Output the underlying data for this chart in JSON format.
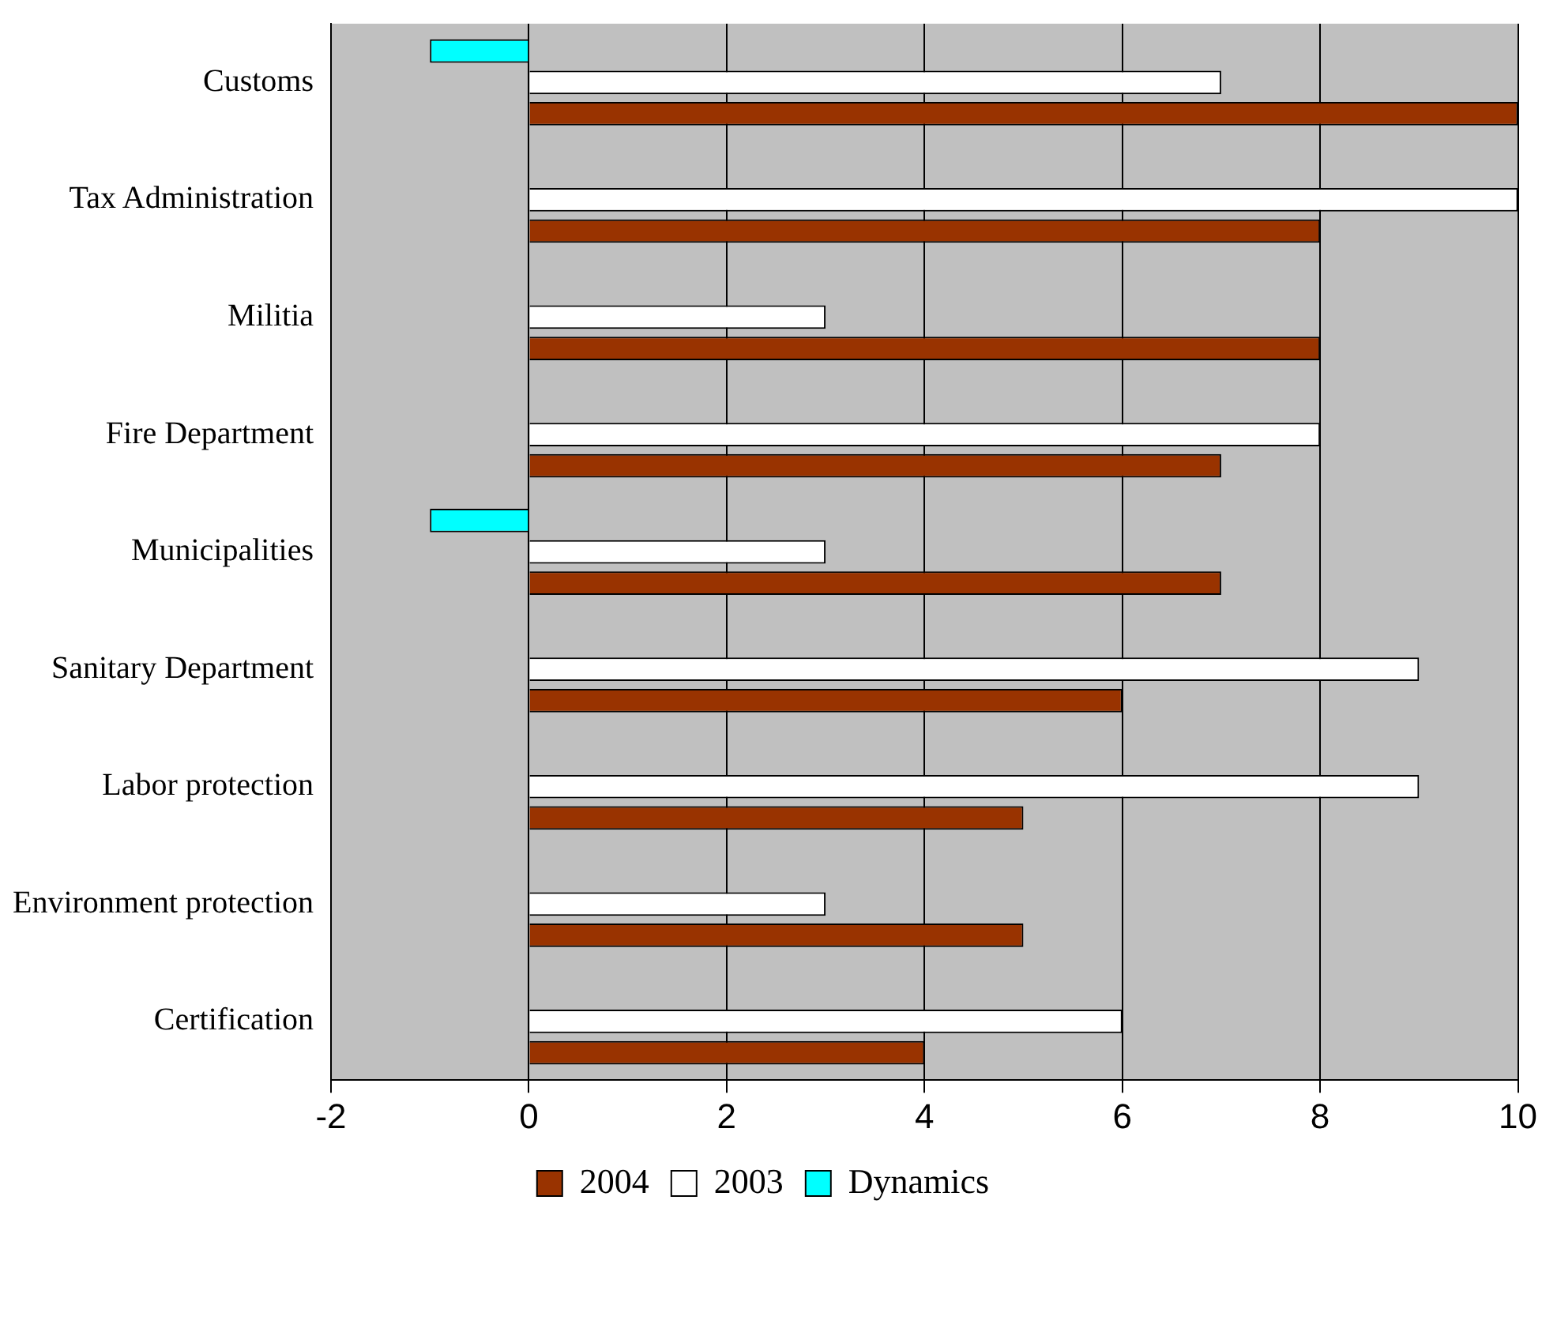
{
  "chart_data": {
    "type": "bar",
    "orientation": "horizontal",
    "categories": [
      "Customs",
      "Tax Administration",
      "Militia",
      "Fire Department",
      "Municipalities",
      "Sanitary Department",
      "Labor protection",
      "Environment protection",
      "Certification"
    ],
    "series": [
      {
        "name": "2004",
        "color": "#993300",
        "values": [
          10,
          8,
          8,
          7,
          7,
          6,
          5,
          5,
          4
        ]
      },
      {
        "name": "2003",
        "color": "#ffffff",
        "values": [
          7,
          10,
          3,
          8,
          3,
          9,
          9,
          3,
          6
        ]
      },
      {
        "name": "Dynamics",
        "color": "#00ffff",
        "values": [
          -1,
          0,
          0,
          0,
          -1,
          0,
          0,
          0,
          0
        ]
      }
    ],
    "xlim": [
      -2,
      10
    ],
    "xticks": [
      -2,
      0,
      2,
      4,
      6,
      8,
      10
    ],
    "grid": "x",
    "legend": "bottom"
  }
}
